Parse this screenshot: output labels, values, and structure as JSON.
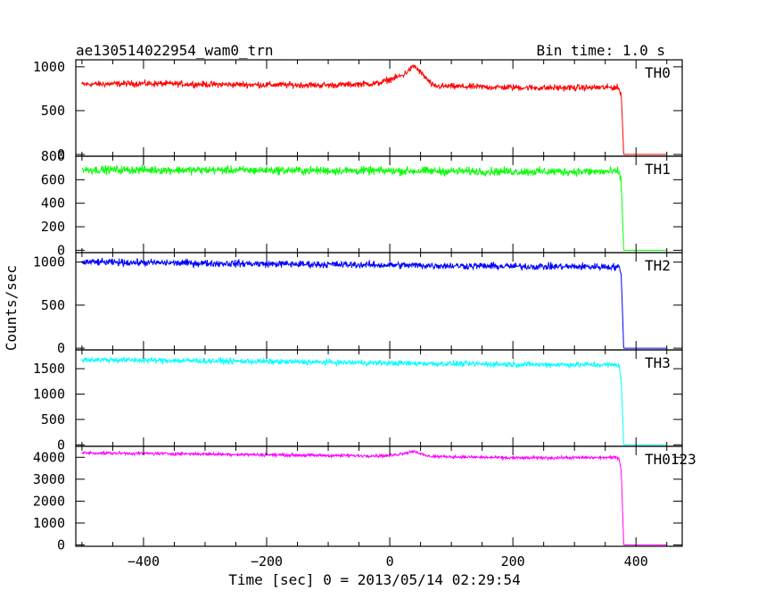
{
  "header": {
    "title": "ae130514022954_wam0_trn",
    "bin_time": "Bin time: 1.0 s"
  },
  "ylabel": "Counts/sec",
  "xlabel": "Time [sec] 0 = 2013/05/14 02:29:54",
  "chart_data": {
    "type": "line",
    "title": "ae130514022954_wam0_trn",
    "xlabel": "Time [sec] 0 = 2013/05/14 02:29:54",
    "ylabel": "Counts/sec",
    "xlim": [
      -510,
      475
    ],
    "x_ticks": [
      -400,
      -200,
      0,
      200,
      400
    ],
    "x_tick_labels": [
      "−400",
      "−200",
      "0",
      "200",
      "400"
    ],
    "grid": false,
    "panels": [
      {
        "name": "TH0",
        "color": "#ff0000",
        "ylim": [
          -20,
          1080
        ],
        "y_ticks": [
          0,
          500,
          1000
        ],
        "y_tick_labels": [
          "0",
          "500",
          "1000"
        ],
        "series": [
          {
            "x": -500,
            "y": 800
          },
          {
            "x": -400,
            "y": 810
          },
          {
            "x": -300,
            "y": 800
          },
          {
            "x": -200,
            "y": 795
          },
          {
            "x": -100,
            "y": 790
          },
          {
            "x": -20,
            "y": 810
          },
          {
            "x": 20,
            "y": 900
          },
          {
            "x": 40,
            "y": 1010
          },
          {
            "x": 55,
            "y": 900
          },
          {
            "x": 70,
            "y": 780
          },
          {
            "x": 150,
            "y": 770
          },
          {
            "x": 250,
            "y": 760
          },
          {
            "x": 370,
            "y": 765
          },
          {
            "x": 376,
            "y": 700
          },
          {
            "x": 380,
            "y": 0
          },
          {
            "x": 450,
            "y": 0
          }
        ],
        "noise": 35
      },
      {
        "name": "TH1",
        "color": "#00ff00",
        "ylim": [
          -20,
          800
        ],
        "y_ticks": [
          0,
          200,
          400,
          600,
          800
        ],
        "y_tick_labels": [
          "0",
          "200",
          "400",
          "600",
          "800"
        ],
        "series": [
          {
            "x": -500,
            "y": 685
          },
          {
            "x": -200,
            "y": 680
          },
          {
            "x": 0,
            "y": 675
          },
          {
            "x": 200,
            "y": 670
          },
          {
            "x": 372,
            "y": 668
          },
          {
            "x": 376,
            "y": 580
          },
          {
            "x": 380,
            "y": 0
          },
          {
            "x": 450,
            "y": 0
          }
        ],
        "noise": 35
      },
      {
        "name": "TH2",
        "color": "#0000ff",
        "ylim": [
          -20,
          1110
        ],
        "y_ticks": [
          0,
          500,
          1000
        ],
        "y_tick_labels": [
          "0",
          "500",
          "1000"
        ],
        "series": [
          {
            "x": -500,
            "y": 1000
          },
          {
            "x": -200,
            "y": 980
          },
          {
            "x": 0,
            "y": 965
          },
          {
            "x": 200,
            "y": 950
          },
          {
            "x": 372,
            "y": 945
          },
          {
            "x": 376,
            "y": 850
          },
          {
            "x": 380,
            "y": 0
          },
          {
            "x": 450,
            "y": 0
          }
        ],
        "noise": 40
      },
      {
        "name": "TH3",
        "color": "#00ffff",
        "ylim": [
          -30,
          1870
        ],
        "y_ticks": [
          0,
          500,
          1000,
          1500
        ],
        "y_tick_labels": [
          "0",
          "500",
          "1000",
          "1500"
        ],
        "series": [
          {
            "x": -500,
            "y": 1680
          },
          {
            "x": -200,
            "y": 1640
          },
          {
            "x": 0,
            "y": 1610
          },
          {
            "x": 200,
            "y": 1585
          },
          {
            "x": 372,
            "y": 1575
          },
          {
            "x": 376,
            "y": 1300
          },
          {
            "x": 380,
            "y": 0
          },
          {
            "x": 450,
            "y": 0
          }
        ],
        "noise": 55
      },
      {
        "name": "TH0123",
        "color": "#ff00ff",
        "ylim": [
          -60,
          4500
        ],
        "y_ticks": [
          0,
          1000,
          2000,
          3000,
          4000
        ],
        "y_tick_labels": [
          "0",
          "1000",
          "2000",
          "3000",
          "4000"
        ],
        "series": [
          {
            "x": -500,
            "y": 4200
          },
          {
            "x": -300,
            "y": 4150
          },
          {
            "x": -100,
            "y": 4080
          },
          {
            "x": 0,
            "y": 4070
          },
          {
            "x": 25,
            "y": 4200
          },
          {
            "x": 40,
            "y": 4280
          },
          {
            "x": 60,
            "y": 4050
          },
          {
            "x": 200,
            "y": 3970
          },
          {
            "x": 372,
            "y": 3990
          },
          {
            "x": 376,
            "y": 3400
          },
          {
            "x": 380,
            "y": 0
          },
          {
            "x": 450,
            "y": 0
          }
        ],
        "noise": 70
      }
    ]
  }
}
